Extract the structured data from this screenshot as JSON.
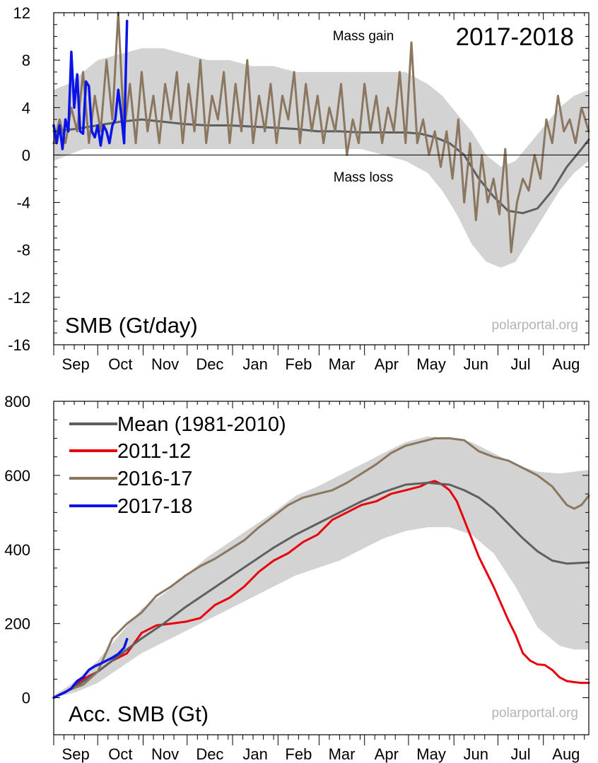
{
  "colors": {
    "band": "#d3d3d3",
    "mean": "#5f5f5f",
    "y2011": "#e8000b",
    "y2016": "#8b7760",
    "y2017": "#0a14e6",
    "axis": "#000000",
    "watermark": "#b4b4b4"
  },
  "chart_data": [
    {
      "type": "line",
      "season": "2017-2018",
      "title": "SMB (Gt/day)",
      "gain_label": "Mass gain",
      "loss_label": "Mass loss",
      "watermark": "polarportal.org",
      "xlabel": "",
      "ylabel": "",
      "x_domain": [
        0,
        365
      ],
      "ylim": [
        -16,
        12
      ],
      "yticks": [
        12,
        8,
        4,
        0,
        -4,
        -8,
        -12,
        -16
      ],
      "ytick_labels": [
        "12",
        "8",
        "4",
        "0",
        "-4",
        "-8",
        "-12",
        "-16"
      ],
      "months": [
        "Sep",
        "Oct",
        "Nov",
        "Dec",
        "Jan",
        "Feb",
        "Mar",
        "Apr",
        "May",
        "Jun",
        "Jul",
        "Aug"
      ],
      "month_starts": [
        0,
        30,
        61,
        91,
        122,
        153,
        181,
        212,
        242,
        273,
        303,
        334
      ],
      "series": [
        {
          "key": "range",
          "kind": "band",
          "x": [
            0,
            10,
            20,
            30,
            45,
            60,
            75,
            90,
            105,
            120,
            135,
            150,
            165,
            180,
            195,
            210,
            225,
            240,
            255,
            265,
            275,
            285,
            295,
            305,
            315,
            325,
            335,
            345,
            355,
            365
          ],
          "upper": [
            5.5,
            6,
            7,
            8,
            8.5,
            9,
            9,
            8.5,
            8,
            8,
            7.5,
            7.5,
            7,
            7,
            7,
            7,
            7,
            7,
            6,
            5,
            3.5,
            2,
            0,
            -1,
            -0.5,
            1,
            2.5,
            4,
            5,
            5.5
          ],
          "lower": [
            -0.5,
            0,
            0.5,
            0.5,
            0.5,
            0.5,
            0.5,
            0.5,
            0.5,
            0.5,
            0.5,
            0.5,
            0.5,
            0.5,
            0.5,
            0.5,
            0,
            -0.5,
            -1.5,
            -3,
            -5,
            -7.5,
            -9,
            -9.5,
            -9,
            -7,
            -5,
            -3,
            -1.5,
            -0.5
          ]
        },
        {
          "key": "mean",
          "kind": "line",
          "x": [
            0,
            15,
            30,
            45,
            60,
            75,
            90,
            105,
            120,
            135,
            150,
            165,
            180,
            195,
            210,
            225,
            240,
            250,
            260,
            270,
            280,
            290,
            300,
            310,
            320,
            330,
            340,
            350,
            360,
            365
          ],
          "y": [
            2,
            2.2,
            2.5,
            2.8,
            3,
            2.8,
            2.6,
            2.5,
            2.5,
            2.4,
            2.3,
            2.2,
            2,
            2,
            1.9,
            1.9,
            1.9,
            1.8,
            1.5,
            1,
            0,
            -2,
            -3.5,
            -4.7,
            -4.9,
            -4.5,
            -3,
            -1,
            0.5,
            1.3
          ]
        },
        {
          "key": "2016-17",
          "kind": "line",
          "x": [
            0,
            4,
            8,
            12,
            16,
            20,
            24,
            28,
            32,
            36,
            40,
            44,
            48,
            52,
            56,
            60,
            64,
            68,
            72,
            76,
            80,
            84,
            88,
            92,
            96,
            100,
            104,
            108,
            112,
            116,
            120,
            124,
            128,
            132,
            136,
            140,
            144,
            148,
            152,
            156,
            160,
            164,
            168,
            172,
            176,
            180,
            184,
            188,
            192,
            196,
            200,
            204,
            208,
            212,
            216,
            220,
            224,
            228,
            232,
            236,
            240,
            244,
            248,
            252,
            256,
            260,
            264,
            268,
            272,
            276,
            280,
            284,
            288,
            292,
            296,
            300,
            304,
            308,
            312,
            316,
            320,
            324,
            328,
            332,
            336,
            340,
            344,
            348,
            352,
            356,
            360,
            365
          ],
          "y": [
            1,
            3,
            1,
            4,
            2,
            7,
            1,
            5,
            2,
            8,
            3,
            12,
            2,
            6,
            1,
            7,
            2,
            5,
            1,
            6,
            3,
            7,
            1,
            6,
            2,
            8,
            1,
            5,
            3,
            7,
            1,
            6,
            2,
            8,
            1,
            5,
            2,
            6,
            1,
            5,
            3,
            7,
            1,
            6,
            2,
            5,
            1,
            4,
            2,
            6,
            0,
            3,
            1,
            6,
            2,
            5,
            1,
            4,
            2,
            7,
            1,
            9.5,
            1,
            3,
            0,
            2,
            -1,
            2,
            -2,
            3,
            -4,
            1,
            -5.5,
            0,
            -4,
            -2,
            -5,
            0.5,
            -8.2,
            -4,
            -2,
            -3,
            0,
            -2,
            3,
            1,
            5,
            2,
            3,
            1,
            4,
            2
          ]
        },
        {
          "key": "2017-18",
          "kind": "line",
          "x": [
            0,
            2,
            4,
            6,
            8,
            10,
            12,
            14,
            16,
            18,
            20,
            22,
            24,
            26,
            28,
            30,
            32,
            34,
            36,
            38,
            40,
            42,
            44,
            46,
            48,
            50
          ],
          "y": [
            2.5,
            1,
            2.5,
            0.5,
            3,
            2,
            8.7,
            4,
            6.8,
            2,
            1.8,
            6.2,
            5.8,
            2,
            1.5,
            2.5,
            0.8,
            2.5,
            2,
            1,
            2.5,
            3,
            5.5,
            3.5,
            1,
            11.3
          ]
        }
      ]
    },
    {
      "type": "line",
      "title": "Acc. SMB (Gt)",
      "watermark": "polarportal.org",
      "xlabel": "",
      "ylabel": "",
      "x_domain": [
        0,
        365
      ],
      "ylim": [
        -100,
        800
      ],
      "yticks": [
        800,
        600,
        400,
        200,
        0
      ],
      "ytick_labels": [
        "800",
        "600",
        "400",
        "200",
        "0"
      ],
      "months": [
        "Sep",
        "Oct",
        "Nov",
        "Dec",
        "Jan",
        "Feb",
        "Mar",
        "Apr",
        "May",
        "Jun",
        "Jul",
        "Aug"
      ],
      "month_starts": [
        0,
        30,
        61,
        91,
        122,
        153,
        181,
        212,
        242,
        273,
        303,
        334
      ],
      "legend": {
        "placement": "top-left",
        "entries": [
          {
            "label": "Mean (1981-2010)",
            "key": "mean"
          },
          {
            "label": "2011-12",
            "key": "2011-12"
          },
          {
            "label": "2016-17",
            "key": "2016-17"
          },
          {
            "label": "2017-18",
            "key": "2017-18"
          }
        ]
      },
      "series": [
        {
          "key": "range",
          "kind": "band",
          "x": [
            0,
            15,
            30,
            45,
            60,
            75,
            90,
            105,
            120,
            135,
            150,
            165,
            180,
            195,
            210,
            225,
            240,
            255,
            270,
            285,
            300,
            315,
            330,
            345,
            355,
            365
          ],
          "upper": [
            5,
            45,
            100,
            170,
            240,
            280,
            330,
            380,
            420,
            460,
            500,
            545,
            570,
            600,
            630,
            660,
            690,
            705,
            700,
            690,
            660,
            630,
            610,
            605,
            610,
            615
          ],
          "lower": [
            0,
            15,
            40,
            80,
            120,
            150,
            180,
            210,
            240,
            270,
            300,
            330,
            350,
            370,
            400,
            430,
            450,
            460,
            460,
            440,
            390,
            300,
            190,
            140,
            130,
            130
          ]
        },
        {
          "key": "mean",
          "kind": "line",
          "x": [
            0,
            15,
            30,
            45,
            60,
            75,
            90,
            105,
            120,
            135,
            150,
            165,
            180,
            195,
            210,
            225,
            240,
            255,
            270,
            280,
            290,
            300,
            310,
            320,
            330,
            340,
            350,
            365
          ],
          "y": [
            0,
            30,
            70,
            115,
            160,
            200,
            245,
            285,
            325,
            365,
            405,
            440,
            470,
            500,
            530,
            555,
            575,
            580,
            575,
            560,
            540,
            510,
            470,
            430,
            395,
            370,
            362,
            365
          ]
        },
        {
          "key": "2011-12",
          "kind": "line",
          "x": [
            0,
            10,
            20,
            30,
            40,
            50,
            60,
            70,
            80,
            90,
            100,
            110,
            120,
            130,
            140,
            150,
            160,
            170,
            180,
            190,
            200,
            210,
            220,
            230,
            240,
            250,
            255,
            260,
            265,
            270,
            275,
            280,
            290,
            300,
            310,
            315,
            320,
            325,
            330,
            335,
            340,
            345,
            350,
            355,
            360,
            365
          ],
          "y": [
            0,
            20,
            50,
            70,
            100,
            120,
            175,
            195,
            200,
            205,
            215,
            250,
            270,
            300,
            340,
            370,
            390,
            420,
            440,
            480,
            500,
            520,
            530,
            550,
            560,
            570,
            580,
            585,
            575,
            560,
            530,
            480,
            380,
            300,
            210,
            170,
            120,
            100,
            90,
            88,
            75,
            55,
            45,
            42,
            40,
            40
          ]
        },
        {
          "key": "2016-17",
          "kind": "line",
          "x": [
            0,
            10,
            20,
            30,
            40,
            50,
            60,
            70,
            80,
            90,
            100,
            110,
            120,
            130,
            140,
            150,
            160,
            170,
            180,
            190,
            200,
            210,
            220,
            230,
            240,
            250,
            260,
            270,
            280,
            290,
            300,
            310,
            320,
            330,
            340,
            350,
            355,
            360,
            365
          ],
          "y": [
            0,
            20,
            35,
            70,
            160,
            200,
            230,
            275,
            300,
            330,
            355,
            375,
            400,
            425,
            460,
            490,
            520,
            540,
            550,
            560,
            580,
            605,
            630,
            660,
            680,
            690,
            700,
            700,
            695,
            665,
            650,
            640,
            620,
            600,
            570,
            520,
            510,
            520,
            545
          ]
        },
        {
          "key": "2017-18",
          "kind": "line",
          "x": [
            0,
            4,
            8,
            12,
            16,
            20,
            24,
            28,
            32,
            36,
            40,
            44,
            48,
            50
          ],
          "y": [
            0,
            8,
            15,
            25,
            45,
            55,
            75,
            85,
            92,
            100,
            108,
            118,
            135,
            158
          ]
        }
      ]
    }
  ]
}
